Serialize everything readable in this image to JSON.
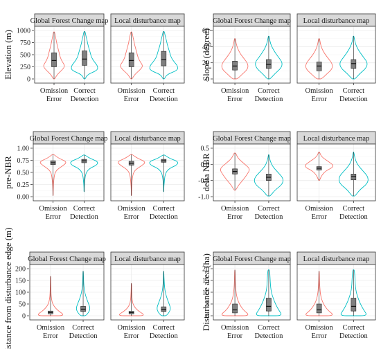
{
  "figure": {
    "colors": {
      "omission": "#F8766D",
      "correct": "#00BFC4",
      "strip_fill": "#D9D9D9",
      "strip_border": "#333333",
      "grid": "#EBEBEB",
      "panel_border": "#333333",
      "box_fill": "#7F7F7F"
    }
  },
  "chart_data": [
    {
      "type": "violin",
      "ylabel": "Elevation (m)",
      "ylim": [
        0,
        1000
      ],
      "yticks": [
        "0",
        "250",
        "500",
        "750",
        "1000"
      ],
      "panels": [
        "Global Forest Change map",
        "Local disturbance map"
      ],
      "categories": [
        "Omission\nError",
        "Correct\nDetection"
      ],
      "series": [
        {
          "panel": "Global Forest Change map",
          "category": "Omission Error",
          "min": 0,
          "q1": 250,
          "median": 380,
          "q3": 540,
          "max": 970,
          "density": [
            0.05,
            0.22,
            0.55,
            0.8,
            0.6,
            0.45,
            0.38,
            0.3,
            0.22,
            0.16,
            0.1,
            0.04
          ]
        },
        {
          "panel": "Global Forest Change map",
          "category": "Correct Detection",
          "min": 0,
          "q1": 280,
          "median": 410,
          "q3": 580,
          "max": 980,
          "density": [
            0.05,
            0.2,
            0.95,
            0.95,
            0.7,
            0.5,
            0.42,
            0.33,
            0.24,
            0.18,
            0.1,
            0.04
          ]
        },
        {
          "panel": "Local disturbance map",
          "category": "Omission Error",
          "min": 0,
          "q1": 250,
          "median": 380,
          "q3": 540,
          "max": 970,
          "density": [
            0.05,
            0.22,
            0.55,
            0.8,
            0.6,
            0.45,
            0.38,
            0.3,
            0.22,
            0.16,
            0.1,
            0.04
          ]
        },
        {
          "panel": "Local disturbance map",
          "category": "Correct Detection",
          "min": 0,
          "q1": 270,
          "median": 400,
          "q3": 570,
          "max": 980,
          "density": [
            0.05,
            0.2,
            0.95,
            0.95,
            0.7,
            0.5,
            0.42,
            0.33,
            0.24,
            0.18,
            0.1,
            0.04
          ]
        }
      ]
    },
    {
      "type": "violin",
      "ylabel": "Slope (degree)",
      "ylim": [
        0,
        60
      ],
      "yticks": [
        "0",
        "20",
        "40",
        "60"
      ],
      "panels": [
        "Global Forest Change map",
        "Local disturbance map"
      ],
      "categories": [
        "Omission\nError",
        "Correct\nDetection"
      ],
      "series": [
        {
          "panel": "Global Forest Change map",
          "category": "Omission Error",
          "min": 0,
          "q1": 11,
          "median": 16,
          "q3": 22,
          "max": 50,
          "density": [
            0.15,
            0.5,
            0.85,
            0.85,
            0.6,
            0.35,
            0.18,
            0.08,
            0.03
          ]
        },
        {
          "panel": "Global Forest Change map",
          "category": "Correct Detection",
          "min": 0,
          "q1": 13,
          "median": 18,
          "q3": 24,
          "max": 53,
          "density": [
            0.1,
            0.4,
            0.8,
            0.9,
            0.65,
            0.4,
            0.2,
            0.08,
            0.03
          ]
        },
        {
          "panel": "Local disturbance map",
          "category": "Omission Error",
          "min": 0,
          "q1": 10,
          "median": 16,
          "q3": 21,
          "max": 50,
          "density": [
            0.15,
            0.5,
            0.85,
            0.85,
            0.6,
            0.35,
            0.18,
            0.08,
            0.03
          ]
        },
        {
          "panel": "Local disturbance map",
          "category": "Correct Detection",
          "min": 0,
          "q1": 13,
          "median": 19,
          "q3": 24,
          "max": 53,
          "density": [
            0.1,
            0.4,
            0.8,
            0.9,
            0.65,
            0.4,
            0.2,
            0.08,
            0.03
          ]
        }
      ]
    },
    {
      "type": "violin",
      "ylabel": "pre-NBR",
      "ylim": [
        0,
        1
      ],
      "yticks": [
        "0.00",
        "0.25",
        "0.50",
        "0.75",
        "1.00"
      ],
      "panels": [
        "Global Forest Change map",
        "Local disturbance map"
      ],
      "categories": [
        "Omission\nError",
        "Correct\nDetection"
      ],
      "series": [
        {
          "panel": "Global Forest Change map",
          "category": "Omission Error",
          "min": 0.02,
          "q1": 0.66,
          "median": 0.7,
          "q3": 0.74,
          "max": 0.87,
          "density": [
            0.01,
            0.01,
            0.02,
            0.03,
            0.05,
            0.08,
            0.13,
            0.3,
            0.7,
            1.0,
            0.4,
            0.05
          ]
        },
        {
          "panel": "Global Forest Change map",
          "category": "Correct Detection",
          "min": 0.1,
          "q1": 0.7,
          "median": 0.74,
          "q3": 0.77,
          "max": 0.86,
          "density": [
            0.01,
            0.01,
            0.02,
            0.04,
            0.06,
            0.1,
            0.18,
            0.4,
            0.9,
            1.0,
            0.4,
            0.05
          ]
        },
        {
          "panel": "Local disturbance map",
          "category": "Omission Error",
          "min": 0.02,
          "q1": 0.65,
          "median": 0.69,
          "q3": 0.73,
          "max": 0.87,
          "density": [
            0.01,
            0.01,
            0.02,
            0.03,
            0.05,
            0.08,
            0.13,
            0.3,
            0.7,
            1.0,
            0.4,
            0.05
          ]
        },
        {
          "panel": "Local disturbance map",
          "category": "Correct Detection",
          "min": 0.1,
          "q1": 0.71,
          "median": 0.74,
          "q3": 0.77,
          "max": 0.86,
          "density": [
            0.01,
            0.01,
            0.02,
            0.04,
            0.06,
            0.1,
            0.18,
            0.4,
            0.9,
            1.0,
            0.4,
            0.05
          ]
        }
      ]
    },
    {
      "type": "violin",
      "ylabel": "delta NBR",
      "ylim": [
        -1.0,
        0.5
      ],
      "yticks": [
        "-1.0",
        "-0.5",
        "0.0",
        "0.5"
      ],
      "panels": [
        "Global Forest Change map",
        "Local disturbance map"
      ],
      "categories": [
        "Omission\nError",
        "Correct\nDetection"
      ],
      "series": [
        {
          "panel": "Global Forest Change map",
          "category": "Omission Error",
          "min": -0.8,
          "q1": -0.3,
          "median": -0.22,
          "q3": -0.14,
          "max": 0.35,
          "density": [
            0.05,
            0.25,
            0.55,
            0.8,
            1.0,
            0.6,
            0.2,
            0.05
          ]
        },
        {
          "panel": "Global Forest Change map",
          "category": "Correct Detection",
          "min": -0.98,
          "q1": -0.5,
          "median": -0.4,
          "q3": -0.3,
          "max": 0.3,
          "density": [
            0.1,
            0.4,
            0.9,
            0.95,
            0.6,
            0.25,
            0.08,
            0.02
          ]
        },
        {
          "panel": "Local disturbance map",
          "category": "Omission Error",
          "min": -0.5,
          "q1": -0.18,
          "median": -0.12,
          "q3": -0.07,
          "max": 0.38,
          "density": [
            0.03,
            0.15,
            0.4,
            1.0,
            0.6,
            0.15,
            0.03
          ]
        },
        {
          "panel": "Local disturbance map",
          "category": "Correct Detection",
          "min": -0.98,
          "q1": -0.48,
          "median": -0.38,
          "q3": -0.3,
          "max": 0.38,
          "density": [
            0.1,
            0.4,
            0.9,
            0.95,
            0.6,
            0.25,
            0.08,
            0.02
          ]
        }
      ]
    },
    {
      "type": "violin",
      "ylabel": "Distance from disturbance edge (m)",
      "ylim": [
        0,
        200
      ],
      "yticks": [
        "0",
        "50",
        "100",
        "150",
        "200"
      ],
      "panels": [
        "Global Forest Change map",
        "Local disturbance map"
      ],
      "categories": [
        "Omission\nError",
        "Correct\nDetection"
      ],
      "series": [
        {
          "panel": "Global Forest Change map",
          "category": "Omission Error",
          "min": 0,
          "q1": 8,
          "median": 14,
          "q3": 20,
          "max": 168,
          "density": [
            1.0,
            0.45,
            0.15,
            0.06,
            0.03,
            0.02,
            0.01,
            0.01
          ]
        },
        {
          "panel": "Global Forest Change map",
          "category": "Correct Detection",
          "min": 0,
          "q1": 18,
          "median": 28,
          "q3": 40,
          "max": 190,
          "density": [
            0.2,
            0.5,
            0.35,
            0.18,
            0.08,
            0.04,
            0.02,
            0.01
          ]
        },
        {
          "panel": "Local disturbance map",
          "category": "Omission Error",
          "min": 0,
          "q1": 8,
          "median": 13,
          "q3": 19,
          "max": 138,
          "density": [
            1.0,
            0.4,
            0.12,
            0.05,
            0.03,
            0.02,
            0.01
          ]
        },
        {
          "panel": "Local disturbance map",
          "category": "Correct Detection",
          "min": 0,
          "q1": 18,
          "median": 27,
          "q3": 38,
          "max": 190,
          "density": [
            0.2,
            0.5,
            0.35,
            0.18,
            0.08,
            0.04,
            0.02,
            0.01
          ]
        }
      ]
    },
    {
      "type": "violin",
      "ylabel": "Disturbance area (ha)",
      "ylim": [
        0,
        20
      ],
      "yticks": [
        "0",
        "5",
        "10",
        "15",
        "20"
      ],
      "panels": [
        "Global Forest Change map",
        "Local disturbance map"
      ],
      "categories": [
        "Omission\nError",
        "Correct\nDetection"
      ],
      "series": [
        {
          "panel": "Global Forest Change map",
          "category": "Omission Error",
          "min": 0,
          "q1": 1.2,
          "median": 2.5,
          "q3": 5.0,
          "max": 19.5,
          "density": [
            1.0,
            0.55,
            0.3,
            0.15,
            0.08,
            0.05,
            0.03,
            0.02,
            0.01
          ]
        },
        {
          "panel": "Global Forest Change map",
          "category": "Correct Detection",
          "min": 0,
          "q1": 2.0,
          "median": 4.0,
          "q3": 7.5,
          "max": 19.5,
          "density": [
            0.9,
            0.65,
            0.45,
            0.3,
            0.18,
            0.12,
            0.1,
            0.08,
            0.05
          ]
        },
        {
          "panel": "Local disturbance map",
          "category": "Omission Error",
          "min": 0,
          "q1": 1.2,
          "median": 2.5,
          "q3": 5.0,
          "max": 19.0,
          "density": [
            1.0,
            0.55,
            0.3,
            0.15,
            0.08,
            0.05,
            0.03,
            0.02,
            0.01
          ]
        },
        {
          "panel": "Local disturbance map",
          "category": "Correct Detection",
          "min": 0,
          "q1": 2.0,
          "median": 4.0,
          "q3": 7.5,
          "max": 19.5,
          "density": [
            0.9,
            0.65,
            0.45,
            0.3,
            0.18,
            0.12,
            0.1,
            0.08,
            0.05
          ]
        }
      ]
    }
  ]
}
